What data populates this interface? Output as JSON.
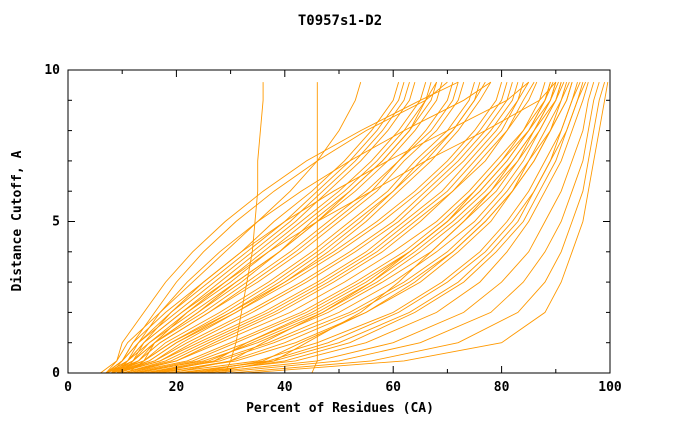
{
  "chart_data": {
    "type": "line",
    "title": "T0957s1-D2",
    "xlabel": "Percent of Residues (CA)",
    "ylabel": "Distance Cutoff, A",
    "xlim": [
      0,
      100
    ],
    "ylim": [
      0,
      10
    ],
    "x_ticks": [
      0,
      20,
      40,
      60,
      80,
      100
    ],
    "y_ticks": [
      0,
      5,
      10
    ],
    "x_minor_step": 10,
    "y_minor_step": 1,
    "line_color": "#ff9900",
    "frame_color": "#000000",
    "legend": "none",
    "grid": false,
    "y_samples": [
      0,
      0.4,
      1,
      2,
      3,
      4,
      5,
      6,
      7,
      8,
      9,
      9.6
    ],
    "curves": [
      [
        33,
        62,
        80,
        88,
        91,
        93,
        95,
        96,
        97,
        98,
        99,
        99.6
      ],
      [
        30,
        56,
        72,
        83,
        88,
        91,
        93,
        95,
        96,
        97,
        98,
        99
      ],
      [
        27,
        50,
        65,
        78,
        84,
        88,
        91,
        93,
        95,
        96,
        97,
        98
      ],
      [
        25,
        46,
        60,
        73,
        80,
        85,
        88,
        91,
        93,
        95,
        96,
        97
      ],
      [
        22,
        42,
        55,
        68,
        76,
        81,
        85,
        88,
        91,
        93,
        95,
        96
      ],
      [
        20,
        38,
        50,
        63,
        72,
        78,
        83,
        86,
        89,
        92,
        94,
        95
      ],
      [
        24,
        40,
        52,
        64,
        73,
        79,
        84,
        87,
        90,
        92,
        94,
        95.5
      ],
      [
        18,
        35,
        46,
        60,
        69,
        76,
        81,
        85,
        88,
        91,
        93,
        94
      ],
      [
        21,
        37,
        48,
        61,
        70,
        77,
        82,
        86,
        89,
        91,
        93,
        94.5
      ],
      [
        26,
        38,
        44,
        54,
        61,
        67,
        73,
        78,
        82,
        86,
        90,
        91
      ],
      [
        19,
        30,
        36,
        47,
        56,
        63,
        70,
        75,
        80,
        84,
        88,
        89
      ],
      [
        23,
        36,
        43,
        55,
        64,
        71,
        77,
        82,
        86,
        89,
        92,
        93
      ],
      [
        16,
        27,
        33,
        45,
        55,
        63,
        70,
        76,
        81,
        85,
        89,
        90
      ],
      [
        16,
        31,
        42,
        55,
        65,
        72,
        78,
        82,
        86,
        89,
        92,
        93
      ],
      [
        14,
        28,
        38,
        52,
        62,
        70,
        76,
        81,
        85,
        88,
        91,
        92
      ],
      [
        17,
        30,
        40,
        53,
        63,
        71,
        77,
        82,
        85,
        89,
        91,
        92.5
      ],
      [
        12,
        25,
        35,
        48,
        58,
        67,
        73,
        79,
        83,
        87,
        90,
        91
      ],
      [
        15,
        27,
        37,
        50,
        60,
        68,
        75,
        80,
        84,
        87,
        90,
        91.5
      ],
      [
        13,
        24,
        33,
        46,
        56,
        64,
        71,
        77,
        82,
        86,
        89,
        90
      ],
      [
        11,
        22,
        30,
        43,
        53,
        62,
        69,
        75,
        80,
        85,
        88,
        89
      ],
      [
        14,
        26,
        34,
        47,
        57,
        65,
        72,
        78,
        83,
        86,
        89,
        90.5
      ],
      [
        10,
        20,
        28,
        41,
        51,
        60,
        68,
        74,
        79,
        84,
        87,
        88
      ],
      [
        12,
        23,
        31,
        44,
        54,
        63,
        70,
        76,
        81,
        85,
        88,
        89.5
      ],
      [
        10,
        19,
        26,
        38,
        48,
        57,
        64,
        71,
        76,
        81,
        84,
        86
      ],
      [
        9,
        17,
        24,
        36,
        46,
        55,
        62,
        69,
        74,
        79,
        83,
        84
      ],
      [
        11,
        20,
        27,
        39,
        49,
        58,
        65,
        71,
        77,
        81,
        85,
        86.5
      ],
      [
        8,
        16,
        22,
        33,
        43,
        52,
        60,
        66,
        72,
        77,
        81,
        82
      ],
      [
        10,
        18,
        25,
        37,
        47,
        56,
        63,
        70,
        75,
        80,
        83,
        85
      ],
      [
        9,
        17,
        23,
        34,
        44,
        53,
        61,
        67,
        73,
        78,
        82,
        83
      ],
      [
        8,
        15,
        20,
        31,
        41,
        50,
        58,
        65,
        71,
        76,
        80,
        81
      ],
      [
        7,
        14,
        19,
        30,
        40,
        49,
        57,
        64,
        70,
        75,
        79,
        80
      ],
      [
        9,
        16,
        21,
        31,
        40,
        48,
        55,
        61,
        67,
        72,
        76,
        78
      ],
      [
        8,
        14,
        18,
        28,
        37,
        45,
        52,
        59,
        64,
        70,
        74,
        75
      ],
      [
        7,
        13,
        17,
        26,
        35,
        43,
        50,
        57,
        62,
        68,
        72,
        73
      ],
      [
        8,
        14,
        19,
        29,
        38,
        46,
        53,
        60,
        65,
        71,
        75,
        76
      ],
      [
        7,
        12,
        16,
        25,
        33,
        41,
        48,
        55,
        61,
        66,
        70,
        71
      ],
      [
        9,
        15,
        20,
        30,
        39,
        47,
        54,
        60,
        66,
        71,
        75,
        77
      ],
      [
        7,
        11,
        15,
        23,
        31,
        39,
        46,
        53,
        59,
        64,
        68,
        69
      ],
      [
        8,
        13,
        17,
        26,
        34,
        42,
        49,
        56,
        61,
        67,
        71,
        72
      ],
      [
        7,
        11,
        14,
        21,
        29,
        36,
        43,
        50,
        56,
        61,
        65,
        66
      ],
      [
        8,
        12,
        15,
        22,
        30,
        37,
        44,
        51,
        57,
        62,
        66,
        67
      ],
      [
        7,
        10,
        13,
        20,
        27,
        34,
        41,
        47,
        53,
        58,
        62,
        63
      ],
      [
        8,
        11,
        14,
        21,
        28,
        35,
        42,
        48,
        54,
        59,
        63,
        64
      ],
      [
        7,
        10,
        12,
        18,
        25,
        32,
        38,
        45,
        51,
        56,
        60,
        61
      ],
      [
        9,
        13,
        16,
        24,
        32,
        39,
        46,
        52,
        58,
        63,
        67,
        68
      ],
      [
        7,
        10,
        13,
        19,
        26,
        33,
        40,
        46,
        52,
        57,
        61,
        62
      ],
      [
        8,
        12,
        16,
        24,
        31,
        39,
        45,
        52,
        58,
        63,
        66,
        68
      ],
      [
        6,
        9,
        11,
        17,
        23,
        29,
        35,
        41,
        46,
        50,
        53,
        54
      ],
      [
        8,
        10,
        12,
        16,
        20,
        25,
        31,
        38,
        46,
        55,
        66,
        70
      ],
      [
        7,
        9,
        10,
        14,
        18,
        23,
        29,
        36,
        44,
        54,
        65,
        72
      ],
      [
        9,
        11,
        13,
        17,
        22,
        28,
        35,
        43,
        52,
        62,
        73,
        78
      ],
      [
        10,
        12,
        14,
        19,
        25,
        32,
        40,
        49,
        59,
        70,
        81,
        85
      ],
      [
        11,
        14,
        16,
        22,
        29,
        37,
        46,
        56,
        66,
        77,
        87,
        90
      ],
      [
        29,
        30,
        31,
        32,
        33,
        34,
        34.5,
        35,
        35,
        35.5,
        36,
        36
      ],
      [
        45,
        46,
        46,
        46,
        46,
        46,
        46,
        46,
        46,
        46,
        46,
        46
      ]
    ]
  }
}
